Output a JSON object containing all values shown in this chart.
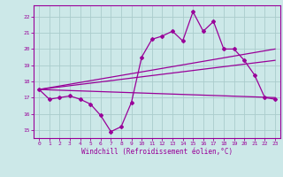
{
  "xlabel": "Windchill (Refroidissement éolien,°C)",
  "bg_color": "#cce8e8",
  "grid_color": "#aacccc",
  "line_color": "#990099",
  "xlim": [
    -0.5,
    23.5
  ],
  "ylim": [
    14.5,
    22.7
  ],
  "xticks": [
    0,
    1,
    2,
    3,
    4,
    5,
    6,
    7,
    8,
    9,
    10,
    11,
    12,
    13,
    14,
    15,
    16,
    17,
    18,
    19,
    20,
    21,
    22,
    23
  ],
  "yticks": [
    15,
    16,
    17,
    18,
    19,
    20,
    21,
    22
  ],
  "main_curve_x": [
    0,
    1,
    2,
    3,
    4,
    5,
    6,
    7,
    8,
    9,
    10,
    11,
    12,
    13,
    14,
    15,
    16,
    17,
    18,
    19,
    20,
    21,
    22,
    23
  ],
  "main_curve_y": [
    17.5,
    16.9,
    17.0,
    17.1,
    16.9,
    16.6,
    15.9,
    14.9,
    15.2,
    16.7,
    19.5,
    20.6,
    20.8,
    21.1,
    20.5,
    22.3,
    21.1,
    21.7,
    20.0,
    20.0,
    19.3,
    18.4,
    17.0,
    16.9
  ],
  "line1_x": [
    0,
    23
  ],
  "line1_y": [
    17.5,
    17.0
  ],
  "line2_x": [
    0,
    23
  ],
  "line2_y": [
    17.5,
    20.0
  ],
  "line3_x": [
    0,
    23
  ],
  "line3_y": [
    17.5,
    19.3
  ]
}
